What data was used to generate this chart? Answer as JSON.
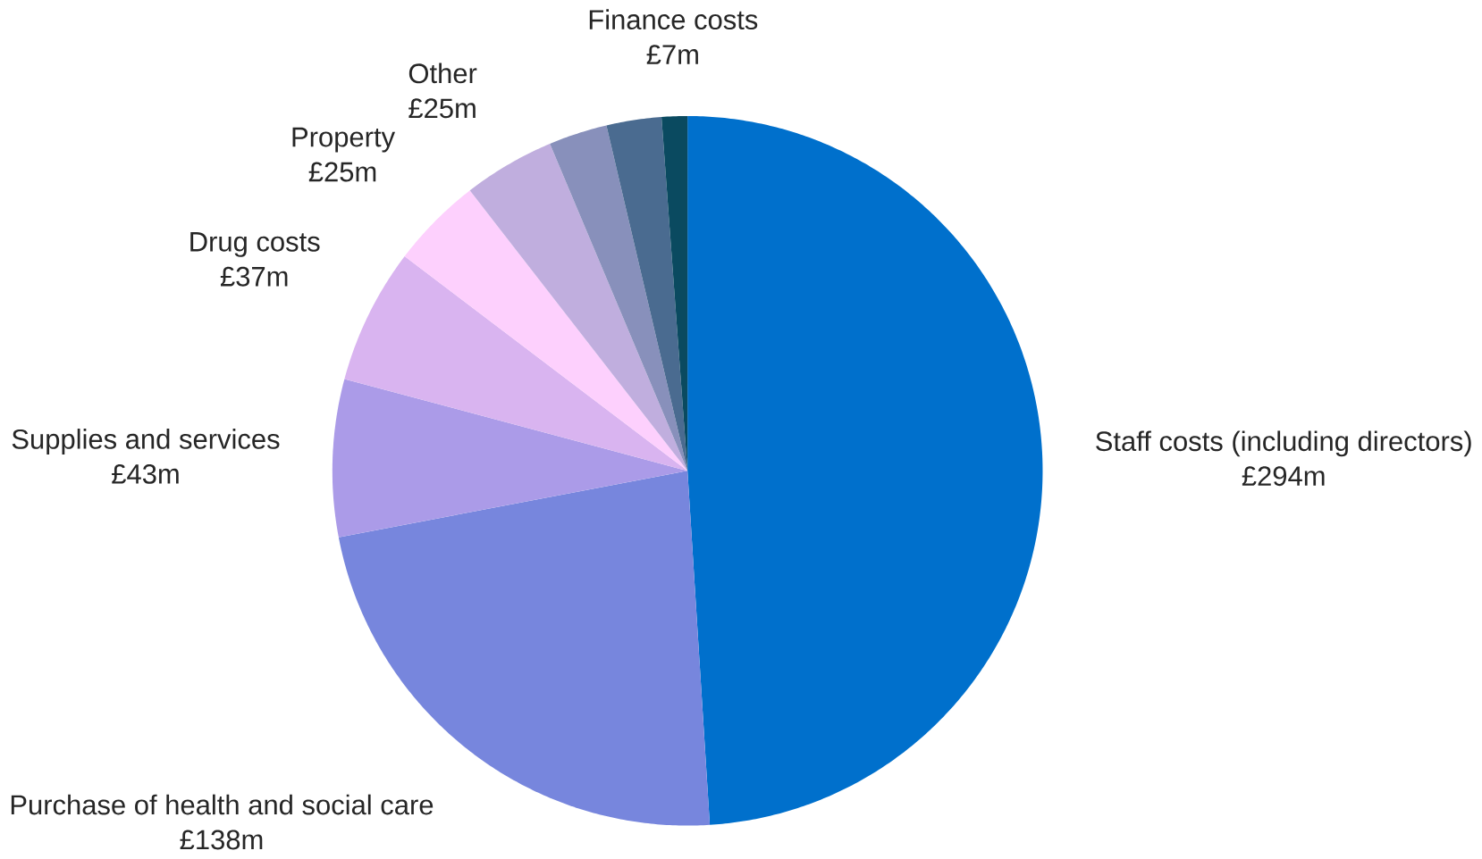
{
  "chart_data": {
    "type": "pie",
    "categories": [
      "Staff costs (including directors)",
      "Purchase of health and social care",
      "Supplies and services",
      "Drug costs",
      "Property",
      "Other",
      null,
      null,
      "Finance costs"
    ],
    "values": [
      294,
      138,
      43,
      37,
      25,
      25,
      16,
      15,
      7
    ],
    "value_labels": [
      "£294m",
      "£138m",
      "£43m",
      "£37m",
      "£25m",
      "£25m",
      null,
      null,
      "£7m"
    ],
    "colors": [
      "#0070cc",
      "#7786dd",
      "#ab9be8",
      "#d9b4f0",
      "#fdd0fd",
      "#c0aede",
      "#8890bb",
      "#4a6b90",
      "#0a4a60"
    ]
  }
}
